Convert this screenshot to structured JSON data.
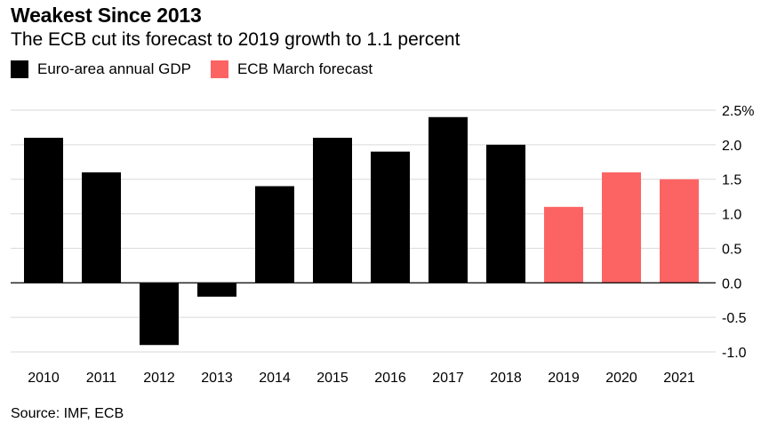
{
  "header": {
    "title": "Weakest Since 2013",
    "subtitle": "The ECB cut its forecast to 2019 growth to 1.1 percent"
  },
  "legend": [
    {
      "label": "Euro-area annual GDP",
      "color": "#000000"
    },
    {
      "label": "ECB March forecast",
      "color": "#fc6464"
    }
  ],
  "footer": {
    "source": "Source: IMF, ECB"
  },
  "chart_data": {
    "type": "bar",
    "categories": [
      "2010",
      "2011",
      "2012",
      "2013",
      "2014",
      "2015",
      "2016",
      "2017",
      "2018",
      "2019",
      "2020",
      "2021"
    ],
    "series": [
      {
        "name": "Euro-area annual GDP",
        "color": "#000000",
        "values": [
          2.1,
          1.6,
          -0.9,
          -0.2,
          1.4,
          2.1,
          1.9,
          2.4,
          2.0,
          null,
          null,
          null
        ]
      },
      {
        "name": "ECB March forecast",
        "color": "#fc6464",
        "values": [
          null,
          null,
          null,
          null,
          null,
          null,
          null,
          null,
          null,
          1.1,
          1.6,
          1.5
        ]
      }
    ],
    "y_ticks": [
      2.5,
      2.0,
      1.5,
      1.0,
      0.5,
      0.0,
      -0.5,
      -1.0
    ],
    "y_tick_labels": [
      "2.5%",
      "2.0",
      "1.5",
      "1.0",
      "0.5",
      "0.0",
      "-0.5",
      "-1.0"
    ],
    "ylim": [
      -1.0,
      2.5
    ],
    "grid": true,
    "legend_position": "top-left"
  }
}
